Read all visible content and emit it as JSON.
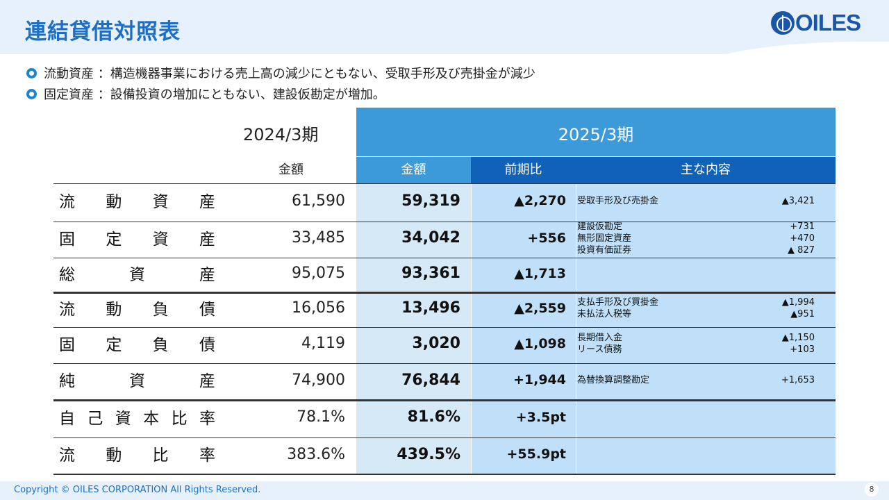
{
  "title": "連結貸借対照表",
  "logo_text": "OILES",
  "bullets": [
    "流動資産 ：構造機器事業における売上高の減少にともない、受取手形及び売掛金が減少",
    "固定資産 ：設備投資の増加にともない、建設仮勘定が増加。"
  ],
  "table": {
    "year_2024": "2024/3期",
    "year_2025": "2025/3期",
    "col_amount_2024": "金額",
    "col_amount_2025": "金額",
    "col_yoy": "前期比",
    "col_details": "主な内容",
    "rows": [
      {
        "label": [
          "流",
          "動",
          "資",
          "産"
        ],
        "v2024": "61,590",
        "v2025": "59,319",
        "diff": "▲2,270",
        "details": [
          {
            "item": "受取手形及び売掛金",
            "value": "▲3,421"
          }
        ]
      },
      {
        "label": [
          "固",
          "定",
          "資",
          "産"
        ],
        "v2024": "33,485",
        "v2025": "34,042",
        "diff": "+556",
        "details": [
          {
            "item": "建設仮勘定",
            "value": "+731"
          },
          {
            "item": "無形固定資産",
            "value": "+470"
          },
          {
            "item": "投資有価証券",
            "value": "▲ 827"
          }
        ]
      },
      {
        "label": [
          "総",
          "資",
          "産"
        ],
        "v2024": "95,075",
        "v2025": "93,361",
        "diff": "▲1,713",
        "details": []
      },
      {
        "label": [
          "流",
          "動",
          "負",
          "債"
        ],
        "v2024": "16,056",
        "v2025": "13,496",
        "diff": "▲2,559",
        "details": [
          {
            "item": "支払手形及び買掛金",
            "value": "▲1,994"
          },
          {
            "item": "未払法人税等",
            "value": "▲951"
          }
        ]
      },
      {
        "label": [
          "固",
          "定",
          "負",
          "債"
        ],
        "v2024": "4,119",
        "v2025": "3,020",
        "diff": "▲1,098",
        "details": [
          {
            "item": "長期借入金",
            "value": "▲1,150"
          },
          {
            "item": "リース債務",
            "value": "+103"
          }
        ]
      },
      {
        "label": [
          "純",
          "資",
          "産"
        ],
        "v2024": "74,900",
        "v2025": "76,844",
        "diff": "+1,944",
        "details": [
          {
            "item": "為替換算調整勘定",
            "value": "+1,653"
          }
        ]
      },
      {
        "label": [
          "自",
          "己",
          "資",
          "本",
          "比",
          "率"
        ],
        "v2024": "78.1%",
        "v2025": "81.6%",
        "diff": "+3.5pt",
        "details": []
      },
      {
        "label": [
          "流",
          "動",
          "比",
          "率"
        ],
        "v2024": "383.6%",
        "v2025": "439.5%",
        "diff": "+55.9pt",
        "details": []
      }
    ]
  },
  "footer": {
    "copyright": "Copyright © OILES CORPORATION All Rights Reserved.",
    "page": "8"
  }
}
